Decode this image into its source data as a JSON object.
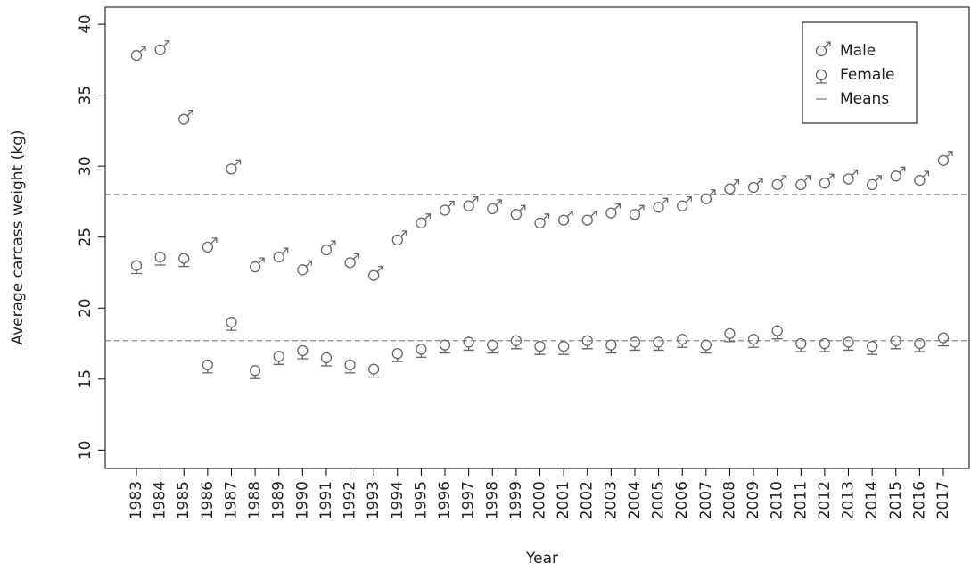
{
  "chart_data": {
    "type": "scatter",
    "x_label": "Year",
    "y_label": "Average carcass weight (kg)",
    "categories": [
      "1983",
      "1984",
      "1985",
      "1986",
      "1987",
      "1988",
      "1989",
      "1990",
      "1991",
      "1992",
      "1993",
      "1994",
      "1995",
      "1996",
      "1997",
      "1998",
      "1999",
      "2000",
      "2001",
      "2002",
      "2003",
      "2004",
      "2005",
      "2006",
      "2007",
      "2008",
      "2009",
      "2010",
      "2011",
      "2012",
      "2013",
      "2014",
      "2015",
      "2016",
      "2017"
    ],
    "series": [
      {
        "name": "Male",
        "marker": "male",
        "color": "#666666",
        "values": [
          37.8,
          38.2,
          33.3,
          24.3,
          29.8,
          22.9,
          23.6,
          22.7,
          24.1,
          23.2,
          22.3,
          24.8,
          26.0,
          26.9,
          27.2,
          27.0,
          26.6,
          26.0,
          26.2,
          26.2,
          26.7,
          26.6,
          27.1,
          27.2,
          27.7,
          28.4,
          28.5,
          28.7,
          28.7,
          28.8,
          29.1,
          28.7,
          29.3,
          29.0,
          30.4
        ]
      },
      {
        "name": "Female",
        "marker": "female",
        "color": "#666666",
        "values": [
          23.0,
          23.6,
          23.5,
          16.0,
          19.0,
          15.6,
          16.6,
          17.0,
          16.5,
          16.0,
          15.7,
          16.8,
          17.1,
          17.4,
          17.6,
          17.4,
          17.7,
          17.3,
          17.3,
          17.7,
          17.4,
          17.6,
          17.6,
          17.8,
          17.4,
          18.2,
          17.8,
          18.4,
          17.5,
          17.5,
          17.6,
          17.3,
          17.7,
          17.5,
          17.9
        ]
      }
    ],
    "reference_lines": {
      "name": "Means",
      "color": "#777777",
      "values": [
        28.0,
        17.7
      ]
    },
    "ylim": [
      8.7,
      41.2
    ],
    "yticks": [
      10,
      15,
      20,
      25,
      30,
      35,
      40
    ],
    "legend": "top-right"
  }
}
